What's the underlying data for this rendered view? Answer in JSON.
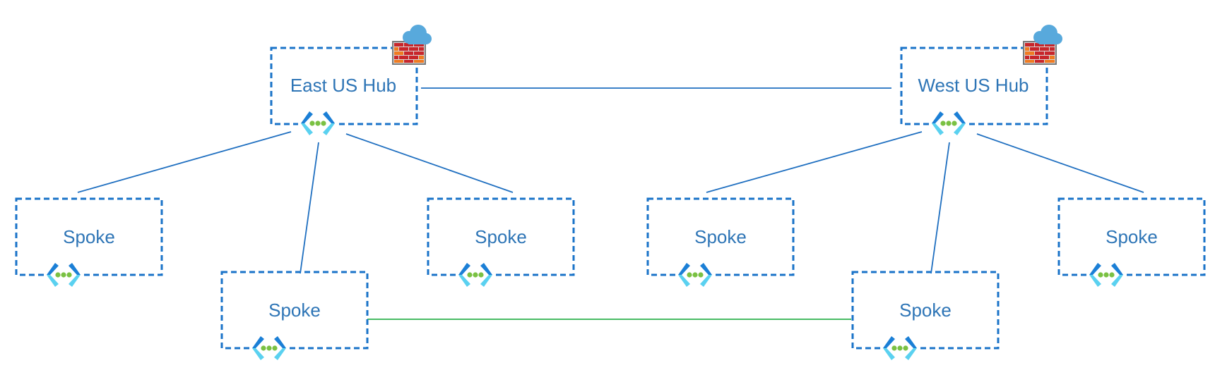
{
  "hubs": [
    {
      "id": "east",
      "label": "East US Hub",
      "icons": [
        "vnet-icon",
        "firewall-icon",
        "cloud-icon"
      ]
    },
    {
      "id": "west",
      "label": "West US Hub",
      "icons": [
        "vnet-icon",
        "firewall-icon",
        "cloud-icon"
      ]
    }
  ],
  "spokes": [
    {
      "id": "east-left",
      "label": "Spoke",
      "icon": "vnet-icon"
    },
    {
      "id": "east-middle",
      "label": "Spoke",
      "icon": "vnet-icon"
    },
    {
      "id": "east-right",
      "label": "Spoke",
      "icon": "vnet-icon"
    },
    {
      "id": "west-left",
      "label": "Spoke",
      "icon": "vnet-icon"
    },
    {
      "id": "west-middle",
      "label": "Spoke",
      "icon": "vnet-icon"
    },
    {
      "id": "west-right",
      "label": "Spoke",
      "icon": "vnet-icon"
    }
  ],
  "connections": [
    {
      "from": "east",
      "to": "west",
      "kind": "hub-peering",
      "color": "#1f6fc0"
    },
    {
      "from": "east",
      "to": "east-left",
      "kind": "hub-spoke",
      "color": "#1f6fc0"
    },
    {
      "from": "east",
      "to": "east-middle",
      "kind": "hub-spoke",
      "color": "#1f6fc0"
    },
    {
      "from": "east",
      "to": "east-right",
      "kind": "hub-spoke",
      "color": "#1f6fc0"
    },
    {
      "from": "west",
      "to": "west-left",
      "kind": "hub-spoke",
      "color": "#1f6fc0"
    },
    {
      "from": "west",
      "to": "west-middle",
      "kind": "hub-spoke",
      "color": "#1f6fc0"
    },
    {
      "from": "west",
      "to": "west-right",
      "kind": "hub-spoke",
      "color": "#1f6fc0"
    },
    {
      "from": "east-middle",
      "to": "west-middle",
      "kind": "spoke-peering",
      "color": "#2fb34f"
    }
  ],
  "colors": {
    "box_border": "#1a73c8",
    "label": "#2e75b6",
    "vnet_bracket_dark": "#1b7fd6",
    "vnet_bracket_light": "#5ad1f0",
    "vnet_dots": "#7ac143",
    "firewall_brick": "#c8262b",
    "firewall_accent": "#f07b22",
    "cloud": "#58a9dc"
  }
}
